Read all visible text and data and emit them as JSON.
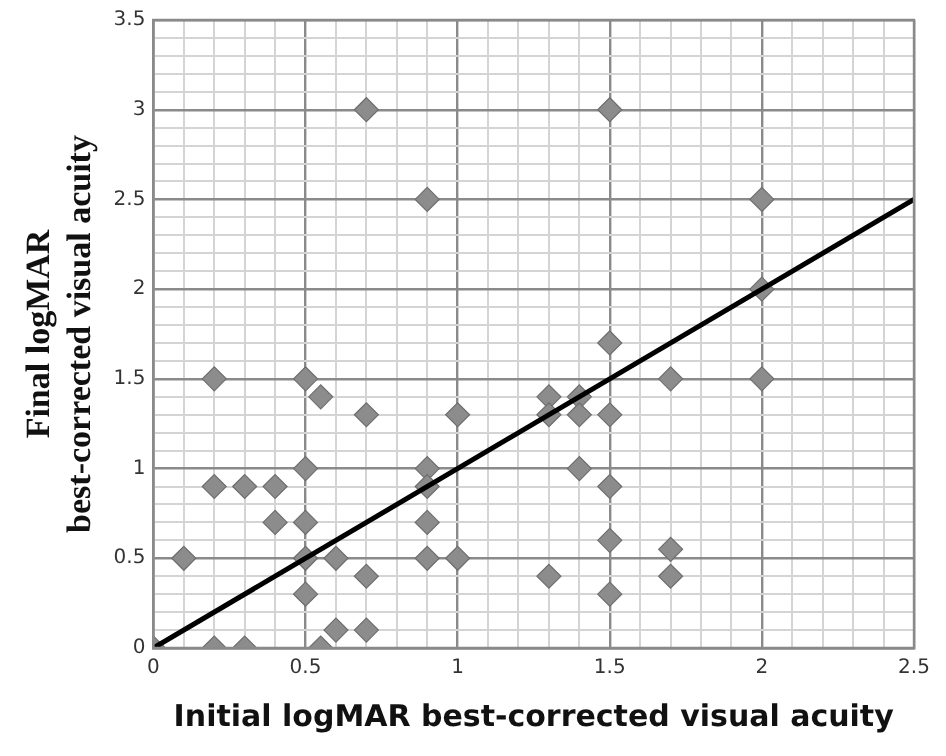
{
  "chart_data": {
    "type": "scatter",
    "xlabel": "Initial logMAR best-corrected visual acuity",
    "ylabel": "Final logMAR best-corrected visual acuity",
    "xlim": [
      0,
      2.5
    ],
    "ylim": [
      0,
      3.5
    ],
    "xticks": [
      0,
      {
        "value": 0.1,
        "label": null
      },
      {
        "value": 0.2,
        "label": null
      },
      {
        "value": 0.3,
        "label": null
      },
      {
        "value": 0.4,
        "label": null
      },
      0.5,
      {
        "value": 0.6,
        "label": null
      },
      {
        "value": 0.7,
        "label": null
      },
      {
        "value": 0.8,
        "label": null
      },
      {
        "value": 0.9,
        "label": null
      },
      1,
      {
        "value": 1.1,
        "label": null
      },
      {
        "value": 1.2,
        "label": null
      },
      {
        "value": 1.3,
        "label": null
      },
      {
        "value": 1.4,
        "label": null
      },
      1.5,
      {
        "value": 1.6,
        "label": null
      },
      {
        "value": 1.7,
        "label": null
      },
      {
        "value": 1.8,
        "label": null
      },
      {
        "value": 1.9,
        "label": null
      },
      2,
      {
        "value": 2.1,
        "label": null
      },
      {
        "value": 2.2,
        "label": null
      },
      {
        "value": 2.3,
        "label": null
      },
      {
        "value": 2.4,
        "label": null
      },
      2.5
    ],
    "yticks": [
      0,
      {
        "value": 0.1,
        "label": null
      },
      {
        "value": 0.2,
        "label": null
      },
      {
        "value": 0.3,
        "label": null
      },
      {
        "value": 0.4,
        "label": null
      },
      0.5,
      {
        "value": 0.6,
        "label": null
      },
      {
        "value": 0.7,
        "label": null
      },
      {
        "value": 0.8,
        "label": null
      },
      {
        "value": 0.9,
        "label": null
      },
      1,
      {
        "value": 1.1,
        "label": null
      },
      {
        "value": 1.2,
        "label": null
      },
      {
        "value": 1.3,
        "label": null
      },
      {
        "value": 1.4,
        "label": null
      },
      1.5,
      {
        "value": 1.6,
        "label": null
      },
      {
        "value": 1.7,
        "label": null
      },
      {
        "value": 1.8,
        "label": null
      },
      {
        "value": 1.9,
        "label": null
      },
      2,
      {
        "value": 2.1,
        "label": null
      },
      {
        "value": 2.2,
        "label": null
      },
      {
        "value": 2.3,
        "label": null
      },
      {
        "value": 2.4,
        "label": null
      },
      2.5,
      {
        "value": 2.6,
        "label": null
      },
      {
        "value": 2.7,
        "label": null
      },
      {
        "value": 2.8,
        "label": null
      },
      {
        "value": 2.9,
        "label": null
      },
      3,
      {
        "value": 3.1,
        "label": null
      },
      {
        "value": 3.2,
        "label": null
      },
      {
        "value": 3.3,
        "label": null
      },
      {
        "value": 3.4,
        "label": null
      },
      3.5
    ],
    "grid": true,
    "legend": false,
    "series": [
      {
        "type": "scatter",
        "color": "#8c8c8c",
        "marker": "diamond",
        "x": [
          0.7,
          1.5,
          0.9,
          2.0,
          2.0,
          1.5,
          0.2,
          0.5,
          1.7,
          2.0,
          0.55,
          0.7,
          1.0,
          1.3,
          1.4,
          1.3,
          1.4,
          1.5,
          0.5,
          0.9,
          0.2,
          0.3,
          0.4,
          0.9,
          1.4,
          1.5,
          0.4,
          0.5,
          0.9,
          0.1,
          0.5,
          0.6,
          0.9,
          1.0,
          0.7,
          1.3,
          1.7,
          1.5,
          1.7,
          0.5,
          1.5,
          0.6,
          0.7,
          0,
          0.2,
          0.3,
          0.55
        ],
        "values": [
          3.0,
          3.0,
          2.5,
          2.5,
          2.0,
          1.7,
          1.5,
          1.5,
          1.5,
          1.5,
          1.4,
          1.3,
          1.3,
          1.4,
          1.4,
          1.3,
          1.3,
          1.3,
          1.0,
          1.0,
          0.9,
          0.9,
          0.9,
          0.9,
          1.0,
          0.9,
          0.7,
          0.7,
          0.7,
          0.5,
          0.5,
          0.5,
          0.5,
          0.5,
          0.4,
          0.4,
          0.4,
          0.6,
          0.55,
          0.3,
          0.3,
          0.1,
          0.1,
          0,
          0,
          0,
          0
        ]
      },
      {
        "type": "line",
        "color": "#000000",
        "marker": "none",
        "line_style": "solid",
        "x": [
          0,
          2.5
        ],
        "values": [
          0,
          2.5
        ]
      }
    ]
  }
}
